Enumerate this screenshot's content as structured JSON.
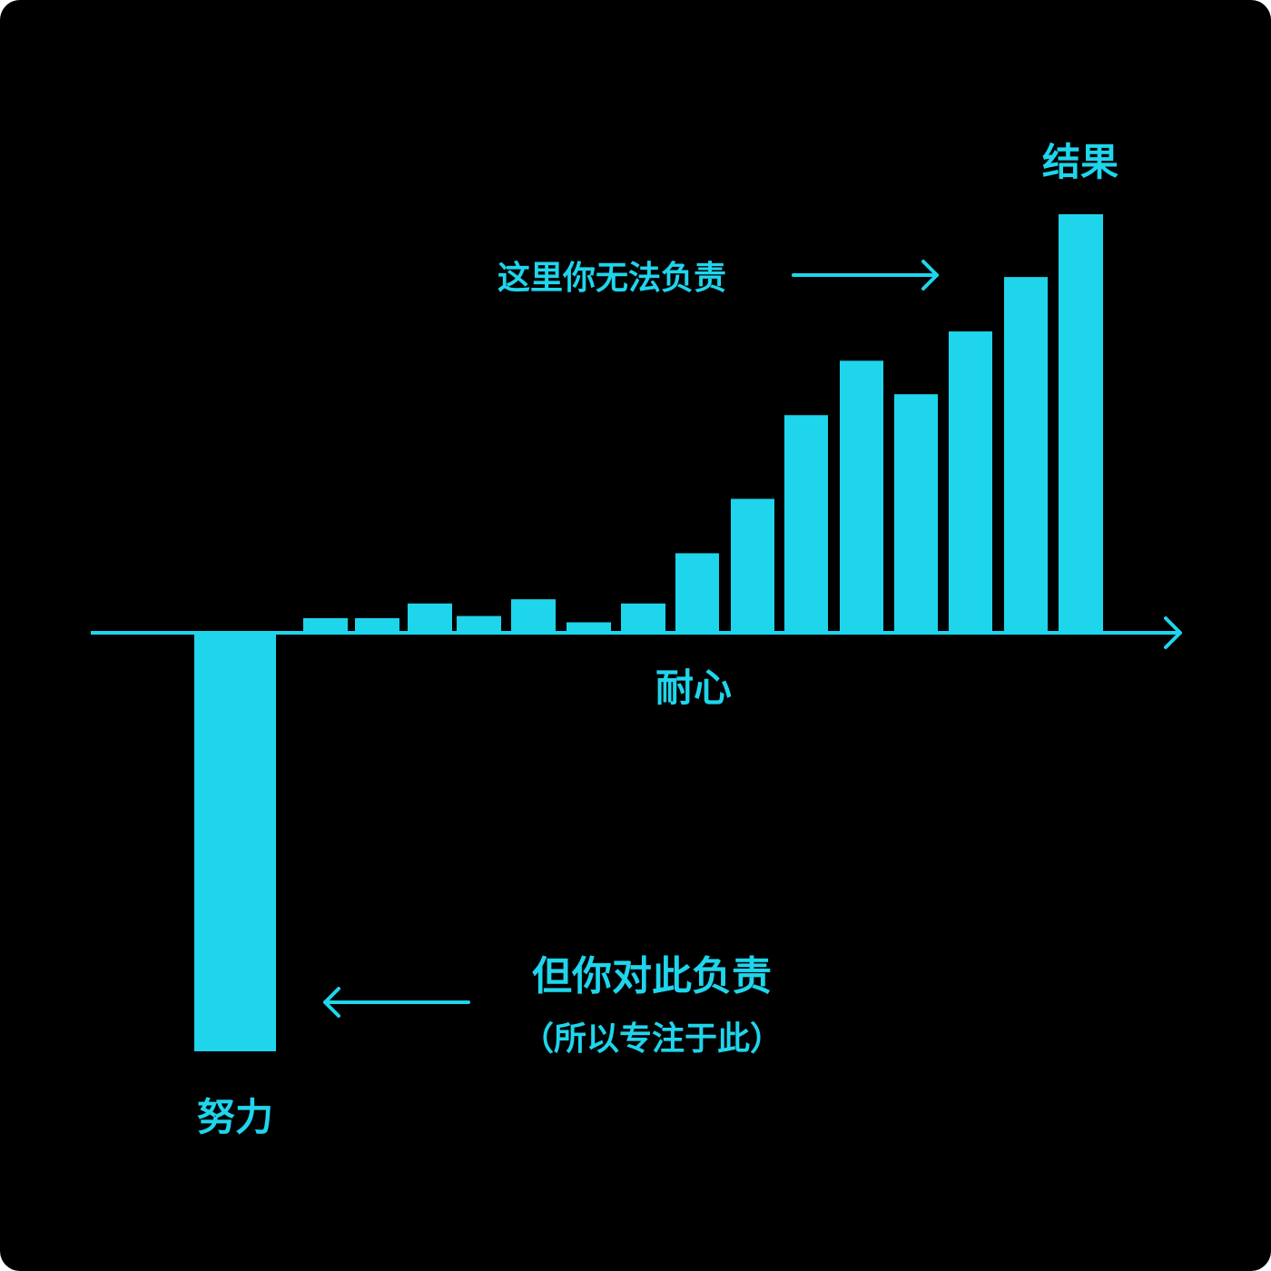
{
  "chart_data": {
    "type": "bar",
    "title": "",
    "xlabel": "耐心",
    "ylabel": "",
    "first_bar_label": "努力",
    "last_bar_label": "结果",
    "values": [
      -10,
      0.35,
      0.35,
      0.7,
      0.4,
      0.8,
      0.25,
      0.7,
      1.9,
      3.2,
      5.2,
      6.5,
      5.7,
      7.2,
      8.5,
      10
    ],
    "ylim": [
      -10,
      10
    ],
    "grid": false,
    "annotations": [
      {
        "id": "top",
        "text": "这里你无法负责",
        "arrow": "right",
        "target": "last bar"
      },
      {
        "id": "bottom",
        "line1": "但你对此负责",
        "line2": "（所以专注于此）",
        "arrow": "left",
        "target": "first bar"
      }
    ],
    "colors": {
      "bar": "#1fd5ec",
      "axis": "#1fd5ec",
      "text": "#1fd5ec",
      "background": "#000000"
    }
  }
}
